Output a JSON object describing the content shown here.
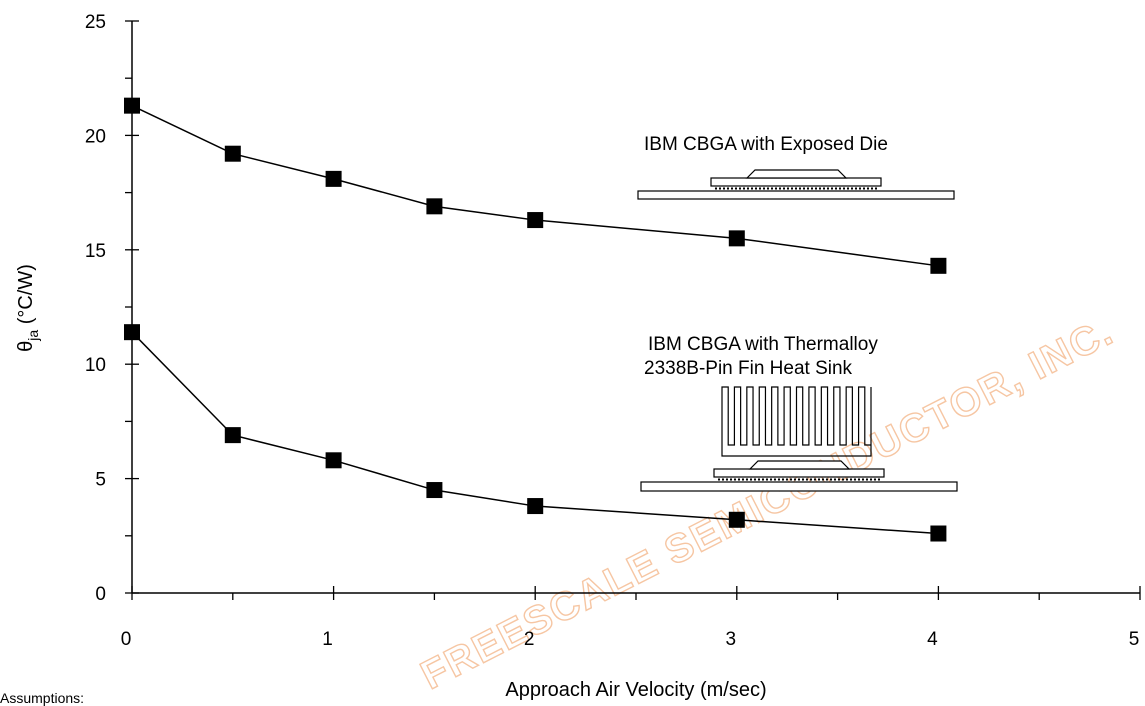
{
  "chart_data": {
    "type": "line",
    "xlabel": "Approach Air Velocity (m/sec)",
    "ylabel_main": "θ",
    "ylabel_sub": "ja",
    "ylabel_rest": " (°C/W)",
    "xlim": [
      0,
      5
    ],
    "ylim": [
      0,
      25
    ],
    "x_ticks": [
      0,
      1,
      2,
      3,
      4,
      5
    ],
    "y_ticks": [
      0,
      5,
      10,
      15,
      20,
      25
    ],
    "x": [
      0,
      0.5,
      1,
      1.5,
      2,
      3,
      4
    ],
    "series": [
      {
        "values": [
          21.3,
          19.2,
          18.1,
          16.9,
          16.3,
          15.5,
          14.3
        ]
      },
      {
        "values": [
          11.4,
          6.9,
          5.8,
          4.5,
          3.8,
          3.2,
          2.6
        ]
      }
    ],
    "annotations": [
      {
        "label": "IBM CBGA with Exposed Die"
      },
      {
        "label": "IBM CBGA with Thermalloy",
        "label2": "2338B-Pin Fin Heat Sink"
      }
    ],
    "marker": "filled-square",
    "line_color": "#000000",
    "grid": false
  },
  "watermark": "FREESCALE SEMICONDUCTOR, INC.",
  "watermark_color": "#f6c6a3",
  "footnote": "Assumptions:"
}
